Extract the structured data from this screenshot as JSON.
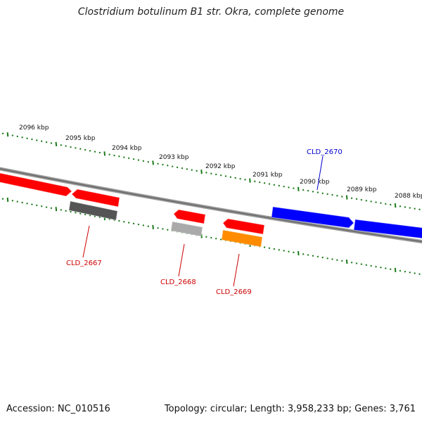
{
  "title": "Clostridium botulinum B1 str. Okra, complete genome",
  "footer": {
    "accession": "Accession: NC_010516",
    "summary": "Topology: circular; Length: 3,958,233 bp; Genes: 3,761"
  },
  "ruler": {
    "labels": [
      "2096 kbp",
      "2095 kbp",
      "2094 kbp",
      "2093 kbp",
      "2092 kbp",
      "2091 kbp",
      "2090 kbp",
      "2089 kbp",
      "2088 kbp"
    ],
    "tick_color": "#1a7a1a"
  },
  "genes": [
    {
      "id": "",
      "color": "#ff0000",
      "strand": "forward"
    },
    {
      "id": "",
      "color": "#ff0000",
      "strand": "reverse"
    },
    {
      "id": "CLD_2667",
      "color": "#555555",
      "strand": "reverse",
      "label_color": "#cc0000"
    },
    {
      "id": "",
      "color": "#ff0000",
      "strand": "reverse"
    },
    {
      "id": "CLD_2668",
      "color": "#aaaaaa",
      "strand": "reverse",
      "label_color": "#cc0000"
    },
    {
      "id": "",
      "color": "#ff0000",
      "strand": "reverse"
    },
    {
      "id": "CLD_2669",
      "color": "#ff8c00",
      "strand": "reverse",
      "label_color": "#cc0000"
    },
    {
      "id": "CLD_2670",
      "color": "#0000ff",
      "strand": "forward",
      "label_color": "#0000cc"
    },
    {
      "id": "",
      "color": "#0000ff",
      "strand": "forward"
    }
  ]
}
